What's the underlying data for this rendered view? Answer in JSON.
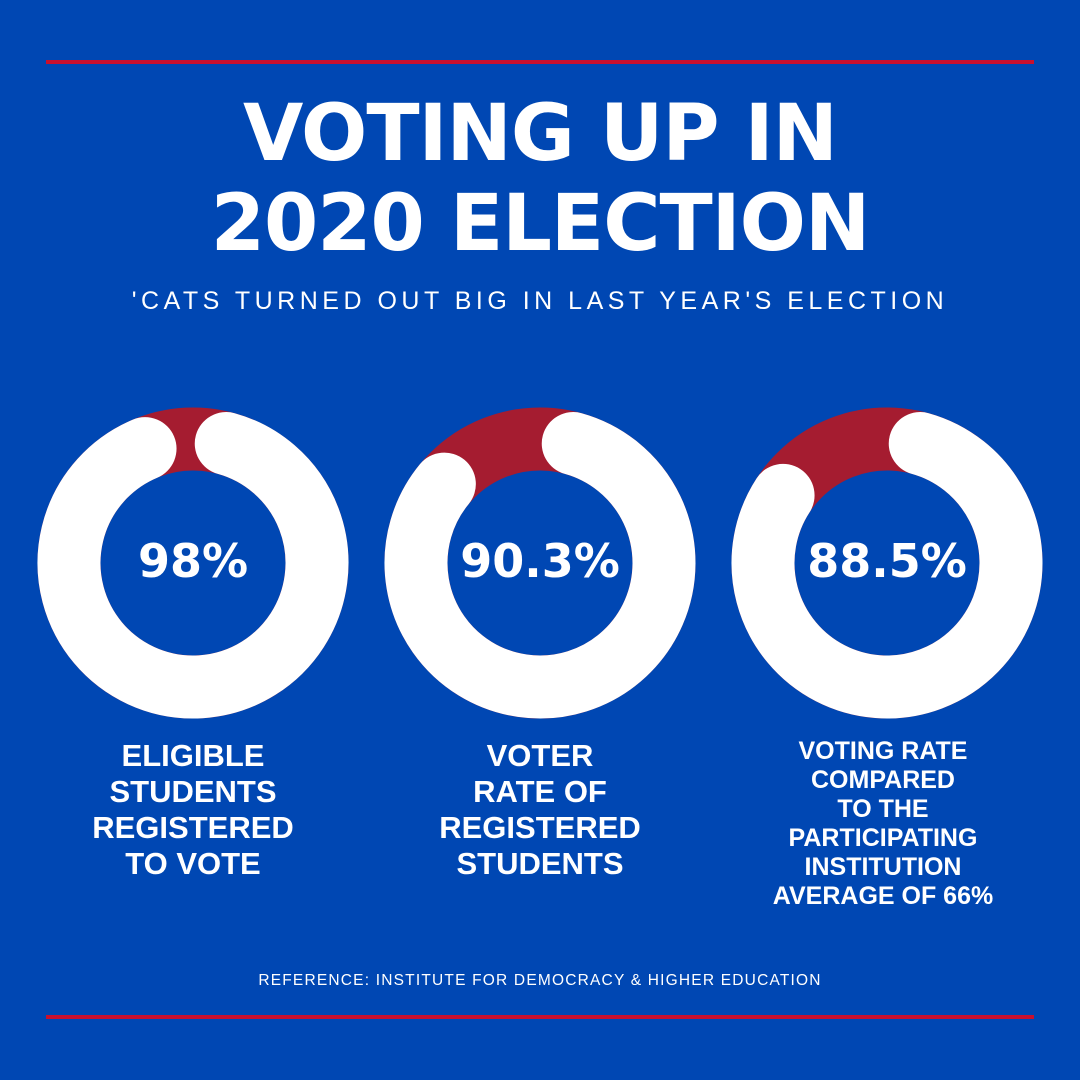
{
  "colors": {
    "background": "#0047b3",
    "accent_red": "#c8102e",
    "segment_red": "#a51c30",
    "ring_white": "#ffffff"
  },
  "header": {
    "title_line_1": "VOTING UP IN",
    "title_line_2": "2020 ELECTION",
    "subtitle": "'CATS TURNED OUT BIG IN LAST YEAR'S ELECTION"
  },
  "chart_data": {
    "type": "donut",
    "title": "VOTING UP IN 2020 ELECTION",
    "subtitle": "'CATS TURNED OUT BIG IN LAST YEAR'S ELECTION",
    "items": [
      {
        "value": 98,
        "label": "98%",
        "caption_lines": [
          "ELIGIBLE",
          "STUDENTS",
          "REGISTERED",
          "TO VOTE"
        ]
      },
      {
        "value": 90.3,
        "label": "90.3%",
        "caption_lines": [
          "VOTER",
          "RATE OF",
          "REGISTERED",
          "STUDENTS"
        ]
      },
      {
        "value": 88.5,
        "label": "88.5%",
        "caption_lines": [
          "VOTING RATE",
          "COMPARED",
          "TO THE",
          "PARTICIPATING",
          "INSTITUTION",
          "AVERAGE OF 66%"
        ]
      }
    ]
  },
  "footer": {
    "reference": "REFERENCE: INSTITUTE FOR DEMOCRACY & HIGHER EDUCATION"
  }
}
